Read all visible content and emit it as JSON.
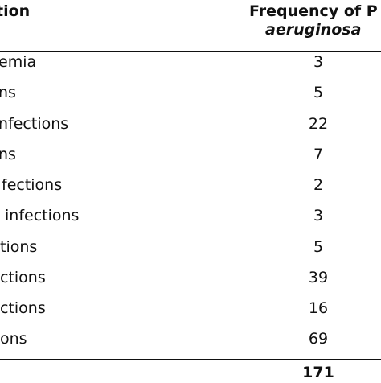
{
  "table": {
    "header_left": "tion",
    "header_right_line1": "Frequency of P",
    "header_right_line2": "aeruginosa",
    "rows": [
      {
        "label": "emia",
        "value": "3"
      },
      {
        "label": "ns",
        "value": "5"
      },
      {
        "label": "nfections",
        "value": "22"
      },
      {
        "label": "ns",
        "value": "7"
      },
      {
        "label": "fections",
        "value": "2"
      },
      {
        "label": "infections",
        "value": "3"
      },
      {
        "label": "tions",
        "value": "5"
      },
      {
        "label": "ctions",
        "value": "39"
      },
      {
        "label": "ctions",
        "value": "16"
      },
      {
        "label": "ons",
        "value": "69"
      }
    ],
    "total": "171"
  }
}
